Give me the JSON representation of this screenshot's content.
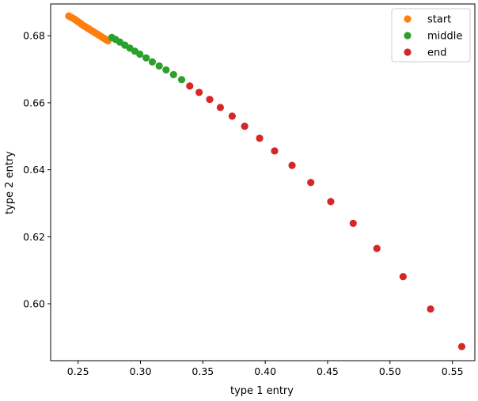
{
  "chart_data": {
    "type": "scatter",
    "xlabel": "type 1 entry",
    "ylabel": "type 2 entry",
    "xlim": [
      0.228,
      0.568
    ],
    "ylim": [
      0.583,
      0.6895
    ],
    "xticks": [
      "0.25",
      "0.30",
      "0.35",
      "0.40",
      "0.45",
      "0.50",
      "0.55"
    ],
    "yticks": [
      "0.60",
      "0.62",
      "0.64",
      "0.66",
      "0.68"
    ],
    "legend_position": "top-right",
    "grid": false,
    "series": [
      {
        "name": "start",
        "color": "#ff7f0e",
        "points": [
          [
            0.2425,
            0.6859
          ],
          [
            0.244,
            0.6856
          ],
          [
            0.2455,
            0.6853
          ],
          [
            0.247,
            0.685
          ],
          [
            0.2485,
            0.6846
          ],
          [
            0.25,
            0.6842
          ],
          [
            0.2515,
            0.6838
          ],
          [
            0.253,
            0.6834
          ],
          [
            0.2545,
            0.683
          ],
          [
            0.256,
            0.6827
          ],
          [
            0.2575,
            0.6823
          ],
          [
            0.259,
            0.682
          ],
          [
            0.2605,
            0.6816
          ],
          [
            0.262,
            0.6813
          ],
          [
            0.2635,
            0.6809
          ],
          [
            0.265,
            0.6806
          ],
          [
            0.2665,
            0.6802
          ],
          [
            0.268,
            0.6799
          ],
          [
            0.2695,
            0.6795
          ],
          [
            0.271,
            0.6792
          ],
          [
            0.2725,
            0.6788
          ],
          [
            0.274,
            0.6785
          ]
        ]
      },
      {
        "name": "middle",
        "color": "#2ca02c",
        "points": [
          [
            0.277,
            0.6795
          ],
          [
            0.28,
            0.6789
          ],
          [
            0.2835,
            0.6781
          ],
          [
            0.2875,
            0.6772
          ],
          [
            0.2915,
            0.6763
          ],
          [
            0.2955,
            0.6754
          ],
          [
            0.2995,
            0.6745
          ],
          [
            0.3045,
            0.6734
          ],
          [
            0.3095,
            0.6722
          ],
          [
            0.315,
            0.671
          ],
          [
            0.3205,
            0.6698
          ],
          [
            0.3265,
            0.6684
          ],
          [
            0.333,
            0.6669
          ]
        ]
      },
      {
        "name": "end",
        "color": "#d62728",
        "points": [
          [
            0.3395,
            0.665
          ],
          [
            0.347,
            0.6631
          ],
          [
            0.3555,
            0.661
          ],
          [
            0.364,
            0.6586
          ],
          [
            0.3735,
            0.656
          ],
          [
            0.3835,
            0.653
          ],
          [
            0.3955,
            0.6494
          ],
          [
            0.4075,
            0.6456
          ],
          [
            0.4215,
            0.6413
          ],
          [
            0.4365,
            0.6362
          ],
          [
            0.4525,
            0.6305
          ],
          [
            0.4705,
            0.624
          ],
          [
            0.4895,
            0.6165
          ],
          [
            0.5105,
            0.6081
          ],
          [
            0.5325,
            0.5984
          ],
          [
            0.5575,
            0.5872
          ]
        ]
      }
    ]
  }
}
